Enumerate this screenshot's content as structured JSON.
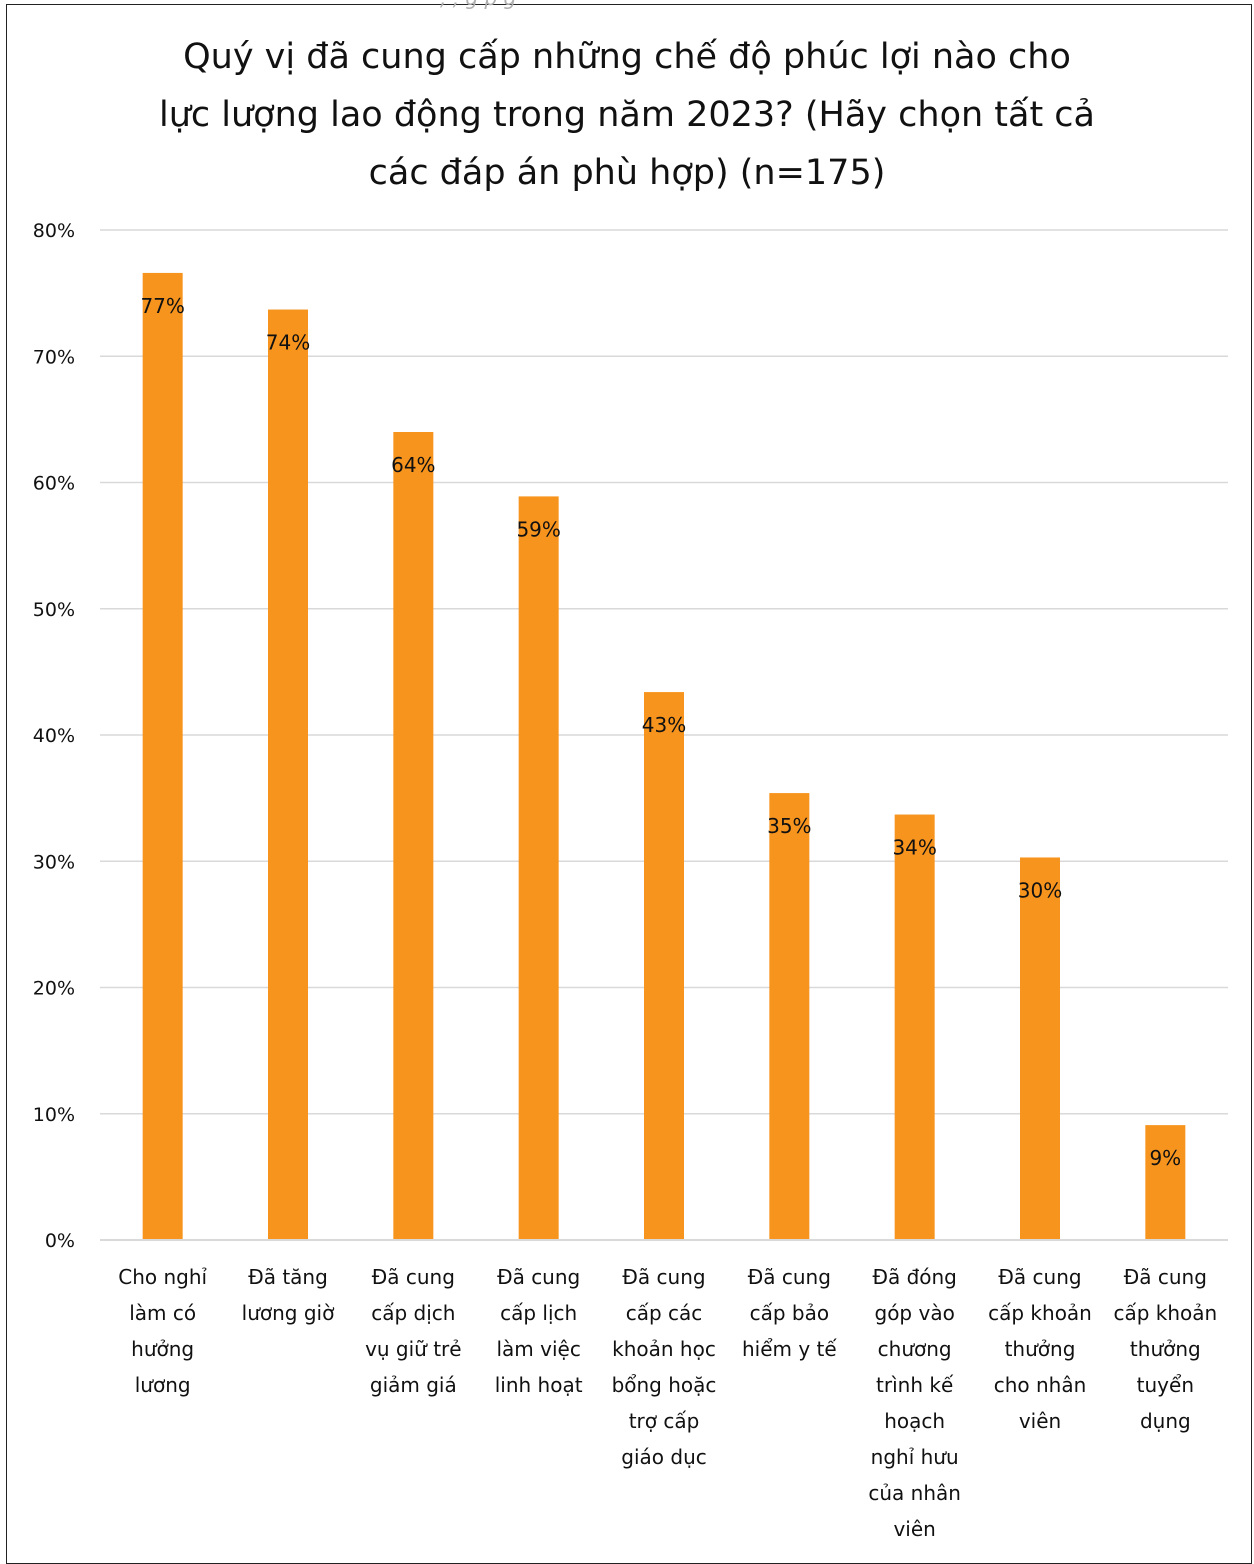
{
  "chart_data": {
    "type": "bar",
    "title": "Quý vị đã cung cấp những chế độ phúc lợi nào cho\nlực lượng lao động trong năm 2023? (Hãy chọn tất cả\ncác đáp án phù hợp) (n=175)",
    "categories": [
      "Cho nghỉ làm có hưởng lương",
      "Đã tăng lương giờ",
      "Đã cung cấp dịch vụ giữ trẻ giảm giá",
      "Đã cung cấp lịch làm việc linh hoạt",
      "Đã cung cấp các khoản học bổng hoặc trợ cấp giáo dục",
      "Đã cung cấp bảo hiểm y tế",
      "Đã đóng góp vào chương trình kế hoạch nghỉ hưu của nhân viên",
      "Đã cung cấp khoản thưởng cho nhân viên",
      "Đã cung cấp khoản thưởng tuyển dụng"
    ],
    "category_lines": [
      [
        "Cho nghỉ",
        "làm có",
        "hưởng",
        "lương"
      ],
      [
        "Đã tăng",
        "lương giờ"
      ],
      [
        "Đã cung",
        "cấp dịch",
        "vụ giữ trẻ",
        "giảm giá"
      ],
      [
        "Đã cung",
        "cấp lịch",
        "làm việc",
        "linh hoạt"
      ],
      [
        "Đã cung",
        "cấp các",
        "khoản học",
        "bổng hoặc",
        "trợ cấp",
        "giáo dục"
      ],
      [
        "Đã cung",
        "cấp bảo",
        "hiểm y tế"
      ],
      [
        "Đã đóng",
        "góp vào",
        "chương",
        "trình kế",
        "hoạch",
        "nghỉ hưu",
        "của nhân",
        "viên"
      ],
      [
        "Đã cung",
        "cấp khoản",
        "thưởng",
        "cho nhân",
        "viên"
      ],
      [
        "Đã cung",
        "cấp khoản",
        "thưởng",
        "tuyển",
        "dụng"
      ]
    ],
    "values": [
      0.766,
      0.737,
      0.64,
      0.589,
      0.434,
      0.354,
      0.337,
      0.303,
      0.091
    ],
    "data_labels": [
      "77%",
      "74%",
      "64%",
      "59%",
      "43%",
      "35%",
      "34%",
      "30%",
      "9%"
    ],
    "y_ticks": [
      "0%",
      "10%",
      "20%",
      "30%",
      "40%",
      "50%",
      "60%",
      "70%",
      "80%"
    ],
    "ylim": [
      0,
      0.8
    ],
    "xlabel": "",
    "ylabel": "",
    "grid": true,
    "legend": "none",
    "bar_color": "#F7941D",
    "grid_color": "#d9d9d9"
  },
  "top_fragment": ", , g p g"
}
